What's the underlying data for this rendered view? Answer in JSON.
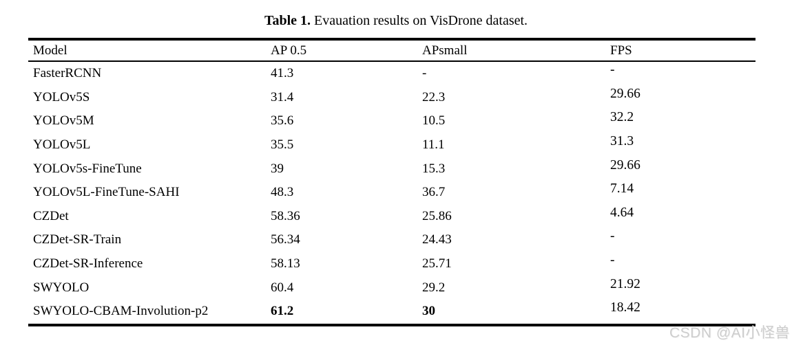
{
  "caption": {
    "label": "Table 1.",
    "text": " Evauation results on VisDrone dataset."
  },
  "table": {
    "columns": [
      "Model",
      "AP 0.5",
      "APsmall",
      "FPS"
    ],
    "rows": [
      {
        "model": "FasterRCNN",
        "ap05": "41.3",
        "apsmall": "-",
        "fps": "-"
      },
      {
        "model": "YOLOv5S",
        "ap05": "31.4",
        "apsmall": "22.3",
        "fps": "29.66"
      },
      {
        "model": "YOLOv5M",
        "ap05": "35.6",
        "apsmall": "10.5",
        "fps": "32.2"
      },
      {
        "model": "YOLOv5L",
        "ap05": "35.5",
        "apsmall": "11.1",
        "fps": "31.3"
      },
      {
        "model": "YOLOv5s-FineTune",
        "ap05": "39",
        "apsmall": "15.3",
        "fps": "29.66"
      },
      {
        "model": "YOLOv5L-FineTune-SAHI",
        "ap05": "48.3",
        "apsmall": "36.7",
        "fps": "7.14"
      },
      {
        "model": "CZDet",
        "ap05": "58.36",
        "apsmall": "25.86",
        "fps": "4.64"
      },
      {
        "model": "CZDet-SR-Train",
        "ap05": "56.34",
        "apsmall": "24.43",
        "fps": "-"
      },
      {
        "model": "CZDet-SR-Inference",
        "ap05": "58.13",
        "apsmall": "25.71",
        "fps": "-"
      },
      {
        "model": "SWYOLO",
        "ap05": "60.4",
        "apsmall": "29.2",
        "fps": "21.92"
      },
      {
        "model": "SWYOLO-CBAM-Involution-p2",
        "ap05": "61.2",
        "apsmall": "30",
        "fps": "18.42",
        "bold": [
          "ap05",
          "apsmall"
        ]
      }
    ]
  },
  "watermark": {
    "text": "CSDN @AI小怪兽",
    "color": "#cdcdcd"
  }
}
